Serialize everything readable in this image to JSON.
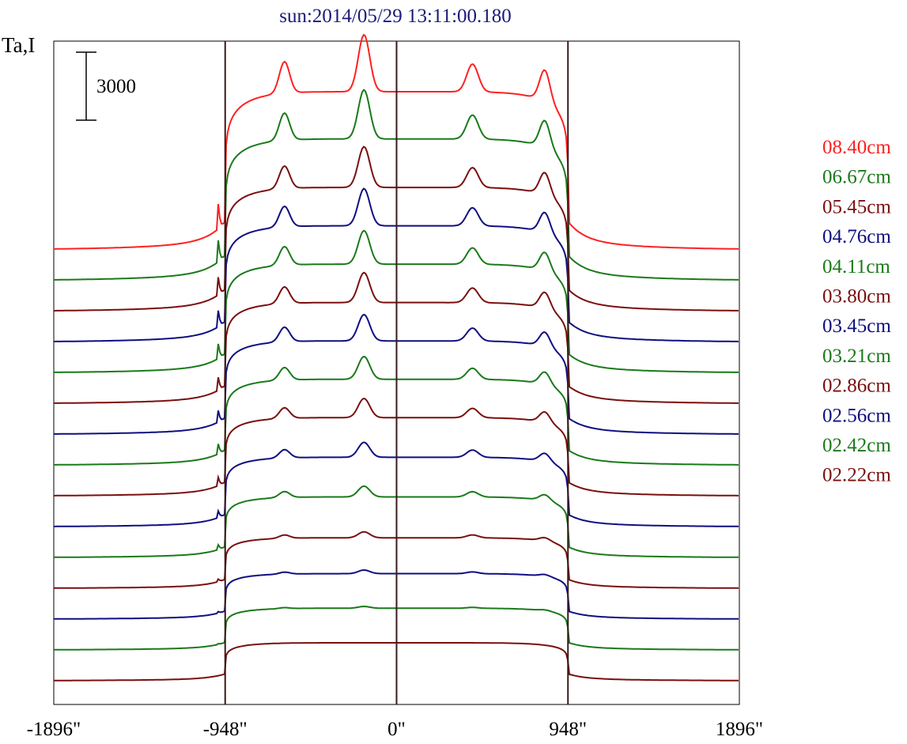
{
  "chart_data": {
    "type": "line",
    "title": "sun:2014/05/29 13:11:00.180",
    "ylabel": "Ta,I",
    "scale_bar_label": "3000",
    "xlim": [
      -1896,
      1896
    ],
    "x_ticks": [
      {
        "value": -1896,
        "label": "-1896\""
      },
      {
        "value": -948,
        "label": "-948\""
      },
      {
        "value": 0,
        "label": "0\""
      },
      {
        "value": 948,
        "label": "948\""
      },
      {
        "value": 1896,
        "label": "1896\""
      }
    ],
    "vertical_lines_at": [
      -948,
      0,
      948
    ],
    "grid": false,
    "legend_position": "right",
    "series": [
      {
        "name": "08.40cm",
        "color": "#ff2020",
        "amp": 1.25
      },
      {
        "name": "06.67cm",
        "color": "#1a7a1a",
        "amp": 1.12
      },
      {
        "name": "05.45cm",
        "color": "#7a0f0f",
        "amp": 0.98
      },
      {
        "name": "04.76cm",
        "color": "#0f0f80",
        "amp": 0.92
      },
      {
        "name": "04.11cm",
        "color": "#1a7a1a",
        "amp": 0.86
      },
      {
        "name": "03.80cm",
        "color": "#7a0f0f",
        "amp": 0.8
      },
      {
        "name": "03.45cm",
        "color": "#0f0f80",
        "amp": 0.74
      },
      {
        "name": "03.21cm",
        "color": "#1a7a1a",
        "amp": 0.68
      },
      {
        "name": "02.86cm",
        "color": "#7a0f0f",
        "amp": 0.62
      },
      {
        "name": "02.56cm",
        "color": "#0f0f80",
        "amp": 0.55
      },
      {
        "name": "02.42cm",
        "color": "#1a7a1a",
        "amp": 0.48
      },
      {
        "name": "02.22cm",
        "color": "#7a0f0f",
        "amp": 0.4
      },
      {
        "name": "",
        "color": "#0f0f80",
        "amp": 0.36
      },
      {
        "name": "",
        "color": "#1a7a1a",
        "amp": 0.33
      },
      {
        "name": "",
        "color": "#7a0f0f",
        "amp": 0.3
      }
    ],
    "profile_features": [
      {
        "x": -1000,
        "h": 0.35,
        "w": 18
      },
      {
        "x": -620,
        "h": 0.25,
        "w": 40
      },
      {
        "x": -180,
        "h": 0.45,
        "w": 45
      },
      {
        "x": 420,
        "h": 0.22,
        "w": 45
      },
      {
        "x": 820,
        "h": 0.25,
        "w": 40
      }
    ]
  }
}
